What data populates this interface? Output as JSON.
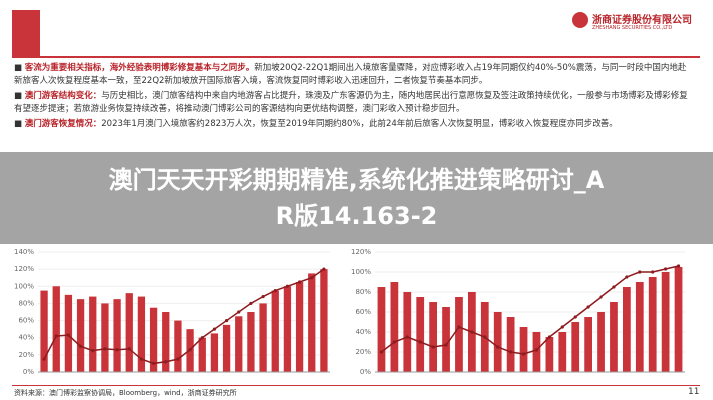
{
  "logo": {
    "name": "浙商证券股份有限公司",
    "name_en": "ZHESHANG SECURITIES CO.,LTD"
  },
  "bullets": [
    {
      "head": "客流为重要相关指标，海外经验表明博彩修复基本与之同步。",
      "text": "新加坡20Q2-22Q1期间出入境旅客量骤降，对应博彩收入占19年同期仅约40%-50%震荡，与同一时段中国内地赴新旅客人次恢复程度基本一致，至22Q2新加坡放开国际旅客入境，客流恢复同时博彩收入迅速回升，二者恢复节奏基本同步。"
    },
    {
      "head": "澳门游客结构变化：",
      "text": "与历史相比，澳门旅客结构中来自内地游客占比提升，珠澳及广东客源仍为主，随内地居民出行意愿恢复及签注政策持续优化，一般参与市场博彩及博彩修复有望逐步提速；若旅游业务恢复持续改善，将推动澳门博彩公司的客源结构向更优结构调整，澳门彩收入预计稳步回升。"
    },
    {
      "head": "澳门游客恢复情况：",
      "text": "2023年1月澳门入境旅客约2823万人次，恢复至2019年同期约80%，此前24年前后旅客人次恢复明显，博彩收入恢复程度亦同步改善。"
    }
  ],
  "banner": {
    "lines": [
      "澳门天天开彩期期精准,系统化推进策略研讨_A",
      "R版14.163-2"
    ]
  },
  "charts": [
    {
      "type": "bar-line",
      "bar_color": "#c9343a",
      "line_color": "#8e1b1f",
      "bars": [
        95,
        100,
        90,
        85,
        88,
        80,
        85,
        92,
        88,
        75,
        70,
        60,
        50,
        40,
        45,
        55,
        65,
        70,
        80,
        95,
        100,
        105,
        115,
        120
      ],
      "line": [
        15,
        42,
        43,
        30,
        25,
        27,
        26,
        27,
        15,
        10,
        12,
        15,
        26,
        40,
        50,
        60,
        70,
        80,
        88,
        95,
        100,
        105,
        110,
        120
      ],
      "ylim": [
        0,
        140
      ],
      "yticks": [
        {
          "value": 0,
          "label": "0%"
        },
        {
          "value": 20,
          "label": "20%"
        },
        {
          "value": 40,
          "label": "40%"
        },
        {
          "value": 60,
          "label": "60%"
        },
        {
          "value": 80,
          "label": "80%"
        },
        {
          "value": 100,
          "label": "100%"
        },
        {
          "value": 120,
          "label": "120%"
        },
        {
          "value": 140,
          "label": "140%"
        }
      ]
    },
    {
      "type": "bar-line",
      "bar_color": "#c9343a",
      "line_color": "#8e1b1f",
      "bars": [
        85,
        90,
        80,
        75,
        70,
        65,
        75,
        80,
        70,
        60,
        55,
        45,
        40,
        35,
        40,
        50,
        55,
        60,
        70,
        85,
        90,
        95,
        100,
        105
      ],
      "line": [
        20,
        30,
        35,
        30,
        25,
        27,
        45,
        40,
        35,
        25,
        20,
        18,
        22,
        35,
        45,
        55,
        65,
        75,
        85,
        95,
        100,
        100,
        103,
        106
      ],
      "ylim": [
        0,
        120
      ],
      "yticks": [
        {
          "value": 0,
          "label": "0%"
        },
        {
          "value": 20,
          "label": "20%"
        },
        {
          "value": 40,
          "label": "40%"
        },
        {
          "value": 60,
          "label": "60%"
        },
        {
          "value": 80,
          "label": "80%"
        },
        {
          "value": 100,
          "label": "100%"
        },
        {
          "value": 120,
          "label": "120%"
        }
      ]
    }
  ],
  "footer": {
    "source": "资料来源：澳门博彩监察协调局，Bloomberg，wind，浙商证券研究所",
    "page": "11"
  }
}
